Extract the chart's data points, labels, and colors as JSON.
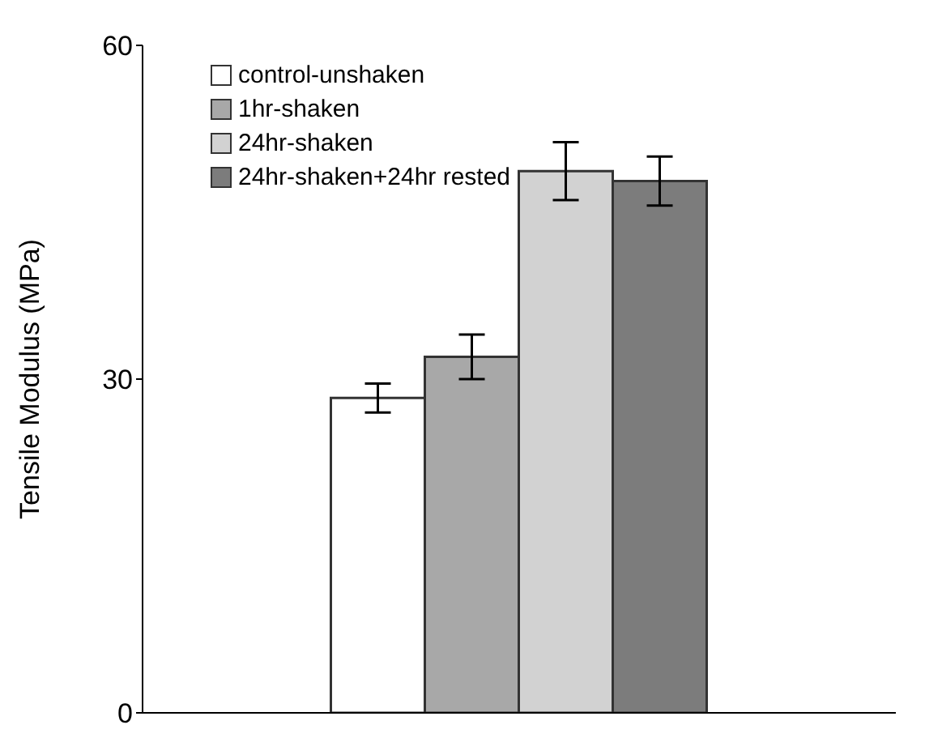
{
  "chart_data": {
    "type": "bar",
    "ylabel": "Tensile Modulus (MPa)",
    "categories": [
      null
    ],
    "series": [
      {
        "name": "control-unshaken",
        "color": "#ffffff",
        "values": [
          28.3
        ],
        "errors": [
          1.3
        ]
      },
      {
        "name": "1hr-shaken",
        "color": "#a8a8a8",
        "values": [
          32.0
        ],
        "errors": [
          2.0
        ]
      },
      {
        "name": "24hr-shaken",
        "color": "#d2d2d2",
        "values": [
          48.7
        ],
        "errors": [
          2.6
        ]
      },
      {
        "name": "24hr-shaken+24hr rested",
        "color": "#7c7c7c",
        "values": [
          47.8
        ],
        "errors": [
          2.2
        ]
      }
    ],
    "ylim": [
      0,
      60
    ],
    "yticks": [
      0,
      30,
      60
    ],
    "grid": false,
    "legend": "top left",
    "tick_labels": "y"
  }
}
